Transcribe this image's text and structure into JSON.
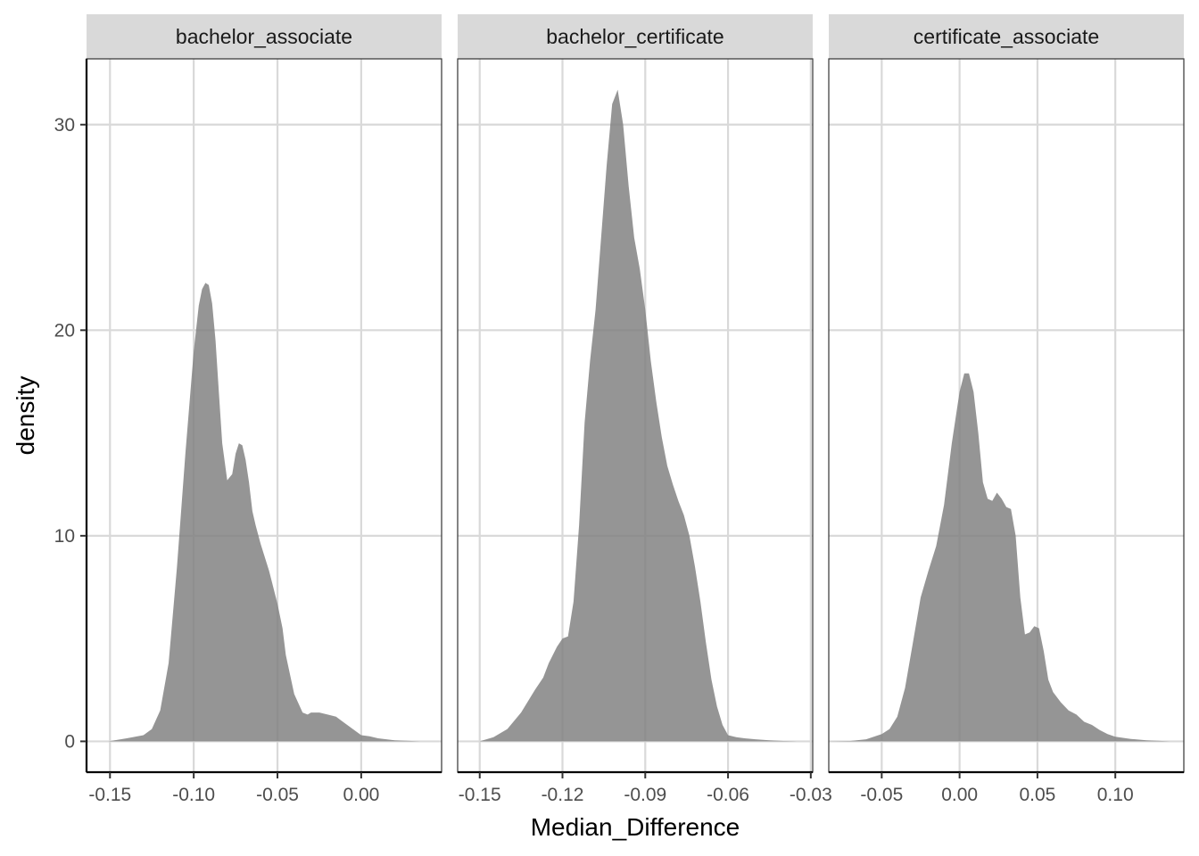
{
  "chart_data": {
    "type": "area",
    "xlabel": "Median_Difference",
    "ylabel": "density",
    "ylim": [
      -1.5,
      33.2
    ],
    "yticks": [
      0,
      10,
      20,
      30
    ],
    "ytick_labels": [
      "0",
      "10",
      "20",
      "30"
    ],
    "fill_color": "#7f7f7f",
    "fill_opacity": 0.83,
    "strip_fill": "#d9d9d9",
    "grid_color": "#d9d9d9",
    "grid": true,
    "panels": [
      {
        "title": "bachelor_associate",
        "xlim": [
          -0.164,
          0.048
        ],
        "xticks": [
          -0.15,
          -0.1,
          -0.05,
          0.0
        ],
        "xtick_labels": [
          "-0.15",
          "-0.10",
          "-0.05",
          "0.00"
        ],
        "x": [
          -0.151,
          -0.14,
          -0.13,
          -0.125,
          -0.12,
          -0.115,
          -0.11,
          -0.105,
          -0.1,
          -0.097,
          -0.095,
          -0.093,
          -0.091,
          -0.089,
          -0.087,
          -0.085,
          -0.083,
          -0.08,
          -0.077,
          -0.075,
          -0.073,
          -0.071,
          -0.069,
          -0.067,
          -0.065,
          -0.063,
          -0.06,
          -0.055,
          -0.05,
          -0.047,
          -0.045,
          -0.04,
          -0.035,
          -0.032,
          -0.03,
          -0.025,
          -0.02,
          -0.015,
          -0.01,
          -0.005,
          0.0,
          0.005,
          0.01,
          0.02,
          0.035
        ],
        "y": [
          0,
          0.15,
          0.3,
          0.6,
          1.5,
          3.8,
          8.5,
          14.0,
          19.0,
          21.2,
          22.0,
          22.3,
          22.2,
          21.3,
          19.5,
          17.0,
          14.5,
          12.7,
          13.0,
          14.0,
          14.5,
          14.4,
          13.7,
          12.6,
          11.2,
          10.5,
          9.6,
          8.3,
          6.7,
          5.5,
          4.2,
          2.3,
          1.4,
          1.3,
          1.4,
          1.4,
          1.3,
          1.2,
          0.9,
          0.6,
          0.3,
          0.25,
          0.15,
          0.05,
          0
        ]
      },
      {
        "title": "bachelor_certificate",
        "xlim": [
          -0.158,
          -0.0293
        ],
        "xticks": [
          -0.15,
          -0.12,
          -0.09,
          -0.06,
          -0.03
        ],
        "xtick_labels": [
          "-0.15",
          "-0.12",
          "-0.09",
          "-0.06",
          "-0.03"
        ],
        "x": [
          -0.15,
          -0.145,
          -0.14,
          -0.135,
          -0.13,
          -0.127,
          -0.125,
          -0.122,
          -0.12,
          -0.118,
          -0.116,
          -0.114,
          -0.112,
          -0.11,
          -0.108,
          -0.106,
          -0.104,
          -0.102,
          -0.1,
          -0.098,
          -0.096,
          -0.094,
          -0.092,
          -0.09,
          -0.088,
          -0.086,
          -0.084,
          -0.082,
          -0.08,
          -0.078,
          -0.076,
          -0.074,
          -0.072,
          -0.07,
          -0.068,
          -0.066,
          -0.064,
          -0.062,
          -0.06,
          -0.057,
          -0.054,
          -0.05,
          -0.045,
          -0.04,
          -0.035
        ],
        "y": [
          0,
          0.2,
          0.6,
          1.4,
          2.5,
          3.1,
          3.8,
          4.6,
          5.0,
          5.1,
          6.8,
          10.5,
          15.5,
          18.5,
          21.0,
          24.5,
          28.0,
          31.0,
          31.7,
          30.0,
          27.0,
          24.5,
          23.0,
          21.0,
          18.5,
          16.5,
          14.8,
          13.4,
          12.5,
          11.7,
          11.0,
          10.0,
          8.5,
          6.8,
          4.8,
          3.0,
          1.7,
          0.8,
          0.3,
          0.2,
          0.15,
          0.1,
          0.05,
          0.02,
          0
        ]
      },
      {
        "title": "certificate_associate",
        "xlim": [
          -0.084,
          0.144
        ],
        "xticks": [
          -0.05,
          0.0,
          0.05,
          0.1
        ],
        "xtick_labels": [
          "-0.05",
          "0.00",
          "0.05",
          "0.10"
        ],
        "x": [
          -0.085,
          -0.07,
          -0.06,
          -0.05,
          -0.045,
          -0.04,
          -0.035,
          -0.03,
          -0.025,
          -0.02,
          -0.015,
          -0.01,
          -0.005,
          0.0,
          0.003,
          0.006,
          0.009,
          0.012,
          0.015,
          0.018,
          0.021,
          0.024,
          0.027,
          0.03,
          0.033,
          0.036,
          0.039,
          0.042,
          0.045,
          0.048,
          0.051,
          0.054,
          0.057,
          0.06,
          0.065,
          0.07,
          0.075,
          0.08,
          0.085,
          0.09,
          0.095,
          0.1,
          0.11,
          0.12,
          0.135
        ],
        "y": [
          0,
          0.02,
          0.1,
          0.35,
          0.6,
          1.2,
          2.6,
          4.8,
          7.0,
          8.3,
          9.5,
          11.5,
          14.5,
          17.0,
          17.9,
          17.9,
          17.0,
          15.0,
          12.6,
          11.8,
          11.7,
          12.1,
          11.8,
          11.4,
          11.3,
          10.0,
          7.0,
          5.2,
          5.3,
          5.6,
          5.5,
          4.4,
          3.0,
          2.4,
          1.9,
          1.5,
          1.3,
          0.95,
          0.8,
          0.55,
          0.35,
          0.22,
          0.12,
          0.05,
          0
        ]
      }
    ]
  }
}
